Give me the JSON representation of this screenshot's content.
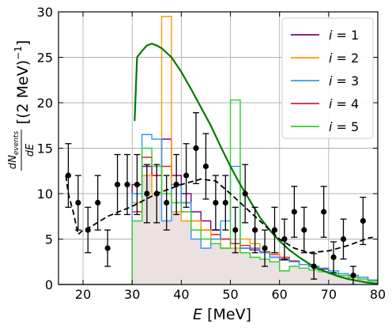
{
  "chart_data": {
    "type": "line",
    "xlabel": "E [MeV]",
    "ylabel": "dN_events/dE [(2 MeV)^-1]",
    "xlim": [
      15,
      80
    ],
    "ylim": [
      0,
      30
    ],
    "x_ticks": [
      "20",
      "30",
      "40",
      "50",
      "60",
      "70",
      "80"
    ],
    "y_ticks": [
      "0",
      "5",
      "10",
      "15",
      "20",
      "25",
      "30"
    ],
    "grid": true,
    "legend_position": "top-right",
    "colors": {
      "i1": "#800080",
      "i2": "#ff9900",
      "i3": "#3399ee",
      "i4": "#dd2222",
      "i5": "#33cc33",
      "dashed": "#000000",
      "green_curve": "#007a00",
      "data": "#000000",
      "fill": "#ebe1e1"
    },
    "series": [
      {
        "name": "i = 1",
        "legend_main": "i",
        "legend_value": "1",
        "color_key": "i1",
        "edges": [
          14,
          30,
          32,
          34,
          36,
          38,
          40,
          42,
          44,
          46,
          48,
          50,
          52,
          54,
          56,
          58,
          60,
          62,
          64,
          66,
          68,
          70,
          72,
          74,
          76,
          78,
          80
        ],
        "values": [
          0,
          11,
          13,
          12,
          16,
          12,
          10,
          8,
          7,
          6,
          5,
          4.5,
          4,
          3.8,
          3.5,
          3,
          2.7,
          2.5,
          2.2,
          2,
          1.7,
          1.5,
          1.2,
          1,
          0.8,
          0.5
        ]
      },
      {
        "name": "i = 2",
        "legend_main": "i",
        "legend_value": "2",
        "color_key": "i2",
        "edges": [
          14,
          30,
          32,
          34,
          36,
          38,
          40,
          42,
          44,
          46,
          48,
          50,
          52,
          54,
          56,
          58,
          60,
          62,
          64,
          66,
          68,
          70,
          72,
          74,
          76,
          78,
          80
        ],
        "values": [
          0,
          9,
          12,
          10,
          29.5,
          8,
          7,
          7,
          6,
          5,
          4,
          4,
          5,
          4.5,
          3.5,
          3.5,
          2.8,
          2.5,
          2.2,
          2,
          1.8,
          1.5,
          1.2,
          1,
          0.8,
          0.5
        ]
      },
      {
        "name": "i = 3",
        "legend_main": "i",
        "legend_value": "3",
        "color_key": "i3",
        "edges": [
          14,
          30,
          32,
          34,
          36,
          38,
          40,
          42,
          44,
          46,
          48,
          50,
          52,
          54,
          56,
          58,
          60,
          62,
          64,
          66,
          68,
          70,
          72,
          74,
          76,
          78,
          80
        ],
        "values": [
          0,
          10,
          16.5,
          16,
          7,
          11,
          9,
          5,
          4,
          5,
          7,
          13,
          4,
          4,
          3.5,
          3,
          2.8,
          2.5,
          2.2,
          2,
          1.8,
          1.5,
          1.2,
          1,
          0.8,
          0.5
        ]
      },
      {
        "name": "i = 4",
        "legend_main": "i",
        "legend_value": "4",
        "color_key": "i4",
        "edges": [
          14,
          30,
          32,
          34,
          36,
          38,
          40,
          42,
          44,
          46,
          48,
          50,
          52,
          54,
          56,
          58,
          60,
          62,
          64,
          66,
          68,
          70,
          72,
          74,
          76,
          78,
          80
        ],
        "values": [
          0,
          8,
          14,
          12,
          13,
          11,
          9,
          7,
          6,
          5.5,
          5,
          4.5,
          4.3,
          4,
          3.6,
          3.3,
          3,
          2.6,
          2.2,
          2,
          1.8,
          1.5,
          1.2,
          1,
          0.8,
          0.5
        ]
      },
      {
        "name": "i = 5",
        "legend_main": "i",
        "legend_value": "5",
        "color_key": "i5",
        "edges": [
          14,
          30,
          32,
          34,
          36,
          38,
          40,
          42,
          44,
          46,
          48,
          50,
          52,
          54,
          56,
          58,
          60,
          62,
          64,
          66,
          68,
          70,
          72,
          74,
          76,
          78,
          80
        ],
        "values": [
          0,
          7,
          15,
          13,
          10,
          9,
          8,
          6,
          5,
          4.5,
          4,
          20.3,
          3.5,
          3,
          2.8,
          2.5,
          1.5,
          2,
          1.8,
          1.6,
          1.4,
          1.2,
          1,
          0.8,
          0.6,
          0.4
        ]
      },
      {
        "name": "",
        "style": "dashed",
        "color_key": "dashed",
        "x": [
          16.5,
          17,
          18,
          19,
          20,
          21,
          22,
          25,
          30,
          35,
          40,
          44,
          47,
          50,
          53,
          57,
          60,
          63,
          66,
          70,
          74,
          78,
          79
        ],
        "y": [
          12,
          10,
          8,
          5.5,
          6,
          6.2,
          6.5,
          7.5,
          8.6,
          10,
          11,
          11.6,
          11.4,
          10,
          8.5,
          6.5,
          5,
          4,
          3.5,
          3.7,
          4.3,
          5.1,
          5.2
        ]
      },
      {
        "name": "",
        "style": "solid",
        "color_key": "green_curve",
        "x": [
          30.5,
          31,
          32,
          33,
          34,
          35,
          36,
          38,
          40,
          42,
          44,
          46,
          48,
          50,
          52,
          54,
          56,
          58,
          60,
          62,
          64,
          66,
          68,
          70,
          72,
          74,
          76,
          78,
          80
        ],
        "y": [
          18,
          25,
          25.7,
          26.3,
          26.5,
          26.3,
          26,
          25,
          23.4,
          21.5,
          19.5,
          17.5,
          15.2,
          13,
          11,
          9.2,
          7.4,
          6,
          4.8,
          3.8,
          3,
          2.3,
          1.7,
          1.3,
          0.9,
          0.6,
          0.4,
          0.2,
          0.1
        ]
      },
      {
        "name": "",
        "style": "errorbar",
        "color_key": "data",
        "x": [
          17,
          19,
          21,
          23,
          25,
          27,
          29,
          31,
          33,
          35,
          37,
          39,
          41,
          43,
          45,
          47,
          49,
          51,
          53,
          55,
          57,
          59,
          61,
          63,
          65,
          67,
          69,
          71,
          73,
          75,
          77
        ],
        "y": [
          12,
          9,
          6,
          9,
          4,
          11,
          11,
          11,
          10,
          10,
          9,
          11,
          12,
          15,
          13,
          9,
          9,
          6,
          10,
          6,
          4,
          6,
          5,
          8,
          6,
          2,
          8,
          3,
          5,
          1,
          7
        ],
        "err": [
          3.5,
          3,
          2.5,
          3,
          2,
          3.3,
          3.3,
          3.3,
          3.2,
          3.2,
          3,
          3.3,
          3.5,
          3.9,
          3.6,
          3,
          3,
          2.5,
          3.2,
          2.5,
          2,
          2.5,
          2.2,
          2.8,
          2.5,
          1.4,
          2.8,
          1.7,
          2.2,
          1,
          2.6
        ]
      }
    ]
  }
}
